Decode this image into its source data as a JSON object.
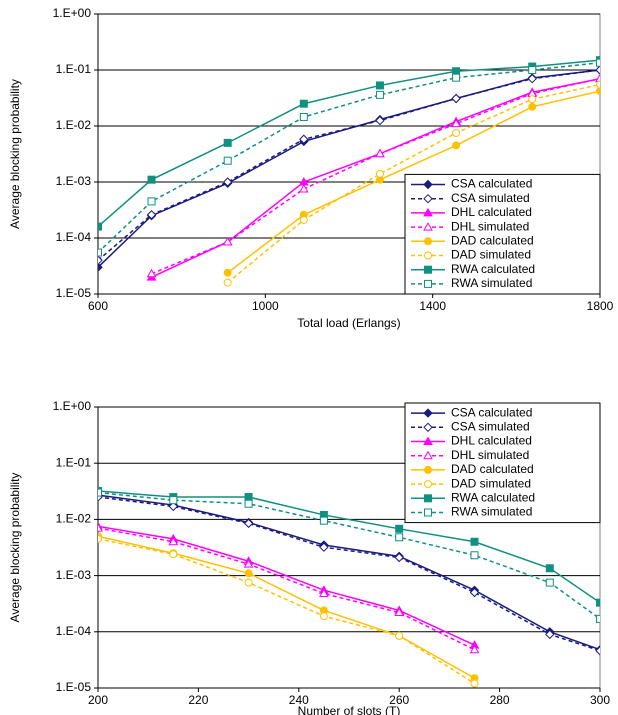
{
  "chart_data": [
    {
      "type": "line",
      "xlabel": "Total load (Erlangs)",
      "ylabel": "Average blocking probability",
      "x": [
        600,
        728,
        910,
        1092,
        1274,
        1456,
        1638,
        1800
      ],
      "xlim": [
        600,
        1800
      ],
      "xticks": [
        600,
        1000,
        1400,
        1800
      ],
      "ylim": [
        1e-05,
        1
      ],
      "log_y": true,
      "grid": true,
      "legend": "lower right",
      "yticks": [
        {
          "value": 1,
          "label": "1.E+00"
        },
        {
          "value": 0.1,
          "label": "1.E-01"
        },
        {
          "value": 0.01,
          "label": "1.E-02"
        },
        {
          "value": 0.001,
          "label": "1.E-03"
        },
        {
          "value": 0.0001,
          "label": "1.E-04"
        },
        {
          "value": 1e-05,
          "label": "1.E-05"
        }
      ],
      "series": [
        {
          "name": "CSA calculated",
          "color": "#1a1a80",
          "dashed": false,
          "marker": "diamond",
          "filled": true,
          "values": [
            3e-05,
            0.00025,
            0.00095,
            0.0053,
            0.013,
            0.031,
            0.072,
            0.1
          ]
        },
        {
          "name": "CSA simulated",
          "color": "#1a1a80",
          "dashed": true,
          "marker": "diamond",
          "filled": false,
          "values": [
            4e-05,
            0.00026,
            0.001,
            0.0058,
            0.0125,
            0.031,
            0.07,
            0.1
          ]
        },
        {
          "name": "DHL calculated",
          "color": "#ff00ff",
          "dashed": false,
          "marker": "triangle",
          "filled": true,
          "values": [
            null,
            2e-05,
            8.5e-05,
            0.001,
            0.0032,
            0.012,
            0.04,
            0.07
          ]
        },
        {
          "name": "DHL simulated",
          "color": "#ff00ff",
          "dashed": true,
          "marker": "triangle",
          "filled": false,
          "values": [
            null,
            2.3e-05,
            8.5e-05,
            0.00075,
            0.0032,
            0.011,
            0.038,
            0.07
          ]
        },
        {
          "name": "DAD calculated",
          "color": "#ffc000",
          "dashed": false,
          "marker": "circle",
          "filled": true,
          "values": [
            null,
            null,
            2.4e-05,
            0.00026,
            0.0011,
            0.0045,
            0.022,
            0.042
          ]
        },
        {
          "name": "DAD simulated",
          "color": "#ffc000",
          "dashed": true,
          "marker": "circle",
          "filled": false,
          "values": [
            null,
            null,
            1.6e-05,
            0.00021,
            0.0014,
            0.0075,
            0.03,
            0.055
          ]
        },
        {
          "name": "RWA calculated",
          "color": "#109080",
          "dashed": false,
          "marker": "square",
          "filled": true,
          "values": [
            0.00016,
            0.0011,
            0.005,
            0.025,
            0.053,
            0.095,
            0.115,
            0.15
          ]
        },
        {
          "name": "RWA simulated",
          "color": "#109080",
          "dashed": true,
          "marker": "square",
          "filled": false,
          "values": [
            5.5e-05,
            0.00045,
            0.0024,
            0.0145,
            0.036,
            0.073,
            0.1,
            0.135
          ]
        }
      ]
    },
    {
      "type": "line",
      "xlabel": "Number of slots (T)",
      "ylabel": "Average blocking probability",
      "x": [
        200,
        215,
        230,
        245,
        260,
        275,
        290,
        300
      ],
      "xlim": [
        200,
        300
      ],
      "xticks": [
        200,
        220,
        240,
        260,
        280,
        300
      ],
      "ylim": [
        1e-05,
        1
      ],
      "log_y": true,
      "grid": true,
      "legend": "upper right",
      "yticks": [
        {
          "value": 1,
          "label": "1.E+00"
        },
        {
          "value": 0.1,
          "label": "1.E-01"
        },
        {
          "value": 0.01,
          "label": "1.E-02"
        },
        {
          "value": 0.001,
          "label": "1.E-03"
        },
        {
          "value": 0.0001,
          "label": "1.E-04"
        },
        {
          "value": 1e-05,
          "label": "1.E-05"
        }
      ],
      "series": [
        {
          "name": "CSA calculated",
          "color": "#1a1a80",
          "dashed": false,
          "marker": "diamond",
          "filled": true,
          "values": [
            0.027,
            0.018,
            0.0088,
            0.0035,
            0.0022,
            0.00055,
            0.0001,
            4.8e-05
          ]
        },
        {
          "name": "CSA simulated",
          "color": "#1a1a80",
          "dashed": true,
          "marker": "diamond",
          "filled": false,
          "values": [
            0.025,
            0.017,
            0.0085,
            0.0032,
            0.0021,
            0.0005,
            9e-05,
            4.6e-05
          ]
        },
        {
          "name": "DHL calculated",
          "color": "#ff00ff",
          "dashed": false,
          "marker": "triangle",
          "filled": true,
          "values": [
            0.0075,
            0.0045,
            0.0018,
            0.00055,
            0.00024,
            5.8e-05,
            null,
            null
          ]
        },
        {
          "name": "DHL simulated",
          "color": "#ff00ff",
          "dashed": true,
          "marker": "triangle",
          "filled": false,
          "values": [
            0.007,
            0.004,
            0.0016,
            0.00048,
            0.00022,
            4.8e-05,
            null,
            null
          ]
        },
        {
          "name": "DAD calculated",
          "color": "#ffc000",
          "dashed": false,
          "marker": "circle",
          "filled": true,
          "values": [
            0.005,
            0.0025,
            0.0011,
            0.00024,
            8.5e-05,
            1.5e-05,
            null,
            null
          ]
        },
        {
          "name": "DAD simulated",
          "color": "#ffc000",
          "dashed": true,
          "marker": "circle",
          "filled": false,
          "values": [
            0.0045,
            0.0024,
            0.00075,
            0.00019,
            8.5e-05,
            1.2e-05,
            null,
            null
          ]
        },
        {
          "name": "RWA calculated",
          "color": "#109080",
          "dashed": false,
          "marker": "square",
          "filled": true,
          "values": [
            0.032,
            0.025,
            0.025,
            0.012,
            0.0068,
            0.004,
            0.00135,
            0.00033
          ]
        },
        {
          "name": "RWA simulated",
          "color": "#109080",
          "dashed": true,
          "marker": "square",
          "filled": false,
          "values": [
            0.03,
            0.022,
            0.019,
            0.0095,
            0.0048,
            0.0023,
            0.00075,
            0.00017
          ]
        }
      ]
    }
  ]
}
